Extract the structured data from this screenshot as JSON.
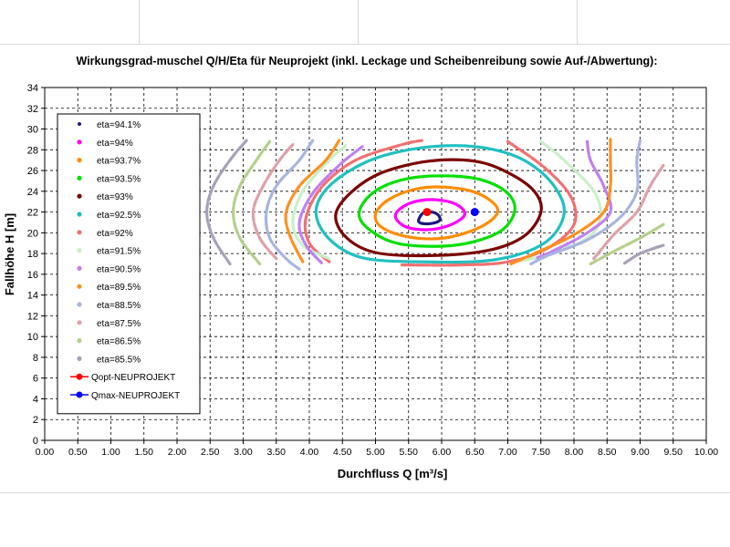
{
  "chart_data": {
    "type": "line",
    "title": "Wirkungsgrad-muschel Q/H/Eta für Neuprojekt (inkl. Leckage und Scheibenreibung sowie Auf-/Abwertung):",
    "xlabel": "Durchfluss Q [m³/s]",
    "ylabel": "Fallhöhe H [m]",
    "xlim": [
      0,
      10
    ],
    "ylim": [
      0,
      34
    ],
    "xticks": [
      "0.00",
      "0.50",
      "1.00",
      "1.50",
      "2.00",
      "2.50",
      "3.00",
      "3.50",
      "4.00",
      "4.50",
      "5.00",
      "5.50",
      "6.00",
      "6.50",
      "7.00",
      "7.50",
      "8.00",
      "8.50",
      "9.00",
      "9.50",
      "10.00"
    ],
    "yticks": [
      "0",
      "2",
      "4",
      "6",
      "8",
      "10",
      "12",
      "14",
      "16",
      "18",
      "20",
      "22",
      "24",
      "26",
      "28",
      "30",
      "32",
      "34"
    ],
    "grid": true,
    "legend_position": "left",
    "series": [
      {
        "name": "eta=94.1%",
        "color": "#1a1a80",
        "closed": true,
        "points": [
          [
            5.65,
            21.2
          ],
          [
            5.72,
            21.9
          ],
          [
            5.85,
            22.0
          ],
          [
            5.95,
            21.7
          ],
          [
            5.97,
            21.2
          ],
          [
            5.85,
            20.9
          ],
          [
            5.7,
            20.9
          ]
        ]
      },
      {
        "name": "eta=94%",
        "color": "#ff00ff",
        "closed": true,
        "points": [
          [
            5.3,
            21.7
          ],
          [
            5.5,
            22.8
          ],
          [
            5.85,
            23.2
          ],
          [
            6.2,
            22.8
          ],
          [
            6.35,
            21.8
          ],
          [
            6.15,
            20.8
          ],
          [
            5.8,
            20.3
          ],
          [
            5.45,
            20.6
          ]
        ]
      },
      {
        "name": "eta=93.7%",
        "color": "#ff8c00",
        "closed": true,
        "points": [
          [
            5.0,
            21.8
          ],
          [
            5.2,
            23.2
          ],
          [
            5.6,
            24.2
          ],
          [
            6.05,
            24.4
          ],
          [
            6.55,
            23.8
          ],
          [
            6.85,
            22.2
          ],
          [
            6.6,
            20.6
          ],
          [
            6.05,
            19.5
          ],
          [
            5.5,
            19.6
          ],
          [
            5.1,
            20.5
          ]
        ]
      },
      {
        "name": "eta=93.5%",
        "color": "#00e000",
        "closed": true,
        "points": [
          [
            4.75,
            21.8
          ],
          [
            4.95,
            23.8
          ],
          [
            5.4,
            25.1
          ],
          [
            6.0,
            25.5
          ],
          [
            6.6,
            25.1
          ],
          [
            7.0,
            23.8
          ],
          [
            7.1,
            22.0
          ],
          [
            6.85,
            20.0
          ],
          [
            6.2,
            18.8
          ],
          [
            5.4,
            18.9
          ],
          [
            4.95,
            20.1
          ]
        ]
      },
      {
        "name": "eta=93%",
        "color": "#7b0000",
        "closed": true,
        "points": [
          [
            4.4,
            21.8
          ],
          [
            4.65,
            24.0
          ],
          [
            5.1,
            25.8
          ],
          [
            5.8,
            26.9
          ],
          [
            6.5,
            26.9
          ],
          [
            7.0,
            25.8
          ],
          [
            7.4,
            24.0
          ],
          [
            7.5,
            22.0
          ],
          [
            7.25,
            19.7
          ],
          [
            6.7,
            18.3
          ],
          [
            5.8,
            17.8
          ],
          [
            5.0,
            18.1
          ],
          [
            4.55,
            19.6
          ]
        ]
      },
      {
        "name": "eta=92.5%",
        "color": "#20c0c0",
        "closed": true,
        "points": [
          [
            4.1,
            22.0
          ],
          [
            4.3,
            24.5
          ],
          [
            4.85,
            26.8
          ],
          [
            5.5,
            28.0
          ],
          [
            6.2,
            28.4
          ],
          [
            6.8,
            28.0
          ],
          [
            7.3,
            26.8
          ],
          [
            7.7,
            24.5
          ],
          [
            7.85,
            21.8
          ],
          [
            7.55,
            19.0
          ],
          [
            6.8,
            17.4
          ],
          [
            5.7,
            17.2
          ],
          [
            4.8,
            17.6
          ],
          [
            4.3,
            19.4
          ]
        ]
      },
      {
        "name": "eta=92%",
        "color": "#f07070",
        "closed": false,
        "points": [
          [
            4.3,
            17.2
          ],
          [
            4.0,
            19.0
          ],
          [
            3.95,
            21.5
          ],
          [
            4.2,
            24.5
          ],
          [
            4.7,
            27.0
          ],
          [
            5.4,
            28.5
          ],
          [
            5.7,
            28.9
          ]
        ]
      },
      {
        "name": "eta=92%",
        "color": "#f07070",
        "closed": false,
        "points": [
          [
            5.4,
            16.9
          ],
          [
            6.3,
            16.9
          ],
          [
            7.0,
            17.2
          ],
          [
            7.6,
            18.5
          ],
          [
            8.0,
            20.8
          ],
          [
            7.95,
            23.5
          ],
          [
            7.55,
            26.3
          ],
          [
            7.0,
            28.8
          ]
        ]
      },
      {
        "name": "eta=91.5%",
        "color": "#c8f0c8",
        "closed": false,
        "points": [
          [
            4.55,
            28.4
          ],
          [
            4.3,
            27.0
          ],
          [
            3.9,
            24.0
          ],
          [
            3.75,
            21.0
          ],
          [
            3.9,
            18.8
          ],
          [
            4.3,
            17.5
          ]
        ]
      },
      {
        "name": "eta=91.5%",
        "color": "#c8f0c8",
        "closed": false,
        "points": [
          [
            7.5,
            28.8
          ],
          [
            7.85,
            27.0
          ],
          [
            8.3,
            24.0
          ],
          [
            8.4,
            21.5
          ],
          [
            8.2,
            19.5
          ],
          [
            7.6,
            17.9
          ],
          [
            7.2,
            17.3
          ]
        ]
      },
      {
        "name": "eta=90.5%",
        "color": "#c080f0",
        "closed": false,
        "points": [
          [
            4.8,
            28.3
          ],
          [
            4.45,
            26.5
          ],
          [
            4.05,
            23.8
          ],
          [
            3.85,
            21.0
          ],
          [
            3.95,
            18.8
          ],
          [
            4.2,
            17.0
          ]
        ]
      },
      {
        "name": "eta=90.5%",
        "color": "#c080f0",
        "closed": false,
        "points": [
          [
            8.2,
            28.8
          ],
          [
            8.25,
            27.0
          ],
          [
            8.45,
            24.5
          ],
          [
            8.55,
            22.0
          ],
          [
            8.2,
            20.0
          ],
          [
            7.7,
            18.3
          ],
          [
            7.45,
            17.6
          ]
        ]
      },
      {
        "name": "eta=89.5%",
        "color": "#ff9020",
        "closed": false,
        "points": [
          [
            4.45,
            28.9
          ],
          [
            4.25,
            27.0
          ],
          [
            3.85,
            24.5
          ],
          [
            3.65,
            22.0
          ],
          [
            3.7,
            19.8
          ],
          [
            3.9,
            17.2
          ]
        ]
      },
      {
        "name": "eta=89.5%",
        "color": "#ff9020",
        "closed": false,
        "points": [
          [
            8.55,
            29.0
          ],
          [
            8.55,
            27.0
          ],
          [
            8.55,
            24.5
          ],
          [
            8.45,
            22.0
          ],
          [
            8.0,
            19.8
          ],
          [
            7.4,
            18.0
          ],
          [
            7.05,
            17.0
          ]
        ]
      },
      {
        "name": "eta=88.5%",
        "color": "#a8b4e0",
        "closed": false,
        "points": [
          [
            4.05,
            28.9
          ],
          [
            3.85,
            27.0
          ],
          [
            3.5,
            24.5
          ],
          [
            3.35,
            22.0
          ],
          [
            3.4,
            19.5
          ],
          [
            3.65,
            17.5
          ],
          [
            3.85,
            16.5
          ]
        ]
      },
      {
        "name": "eta=88.5%",
        "color": "#a8b4e0",
        "closed": false,
        "points": [
          [
            9.0,
            28.9
          ],
          [
            8.95,
            27.0
          ],
          [
            8.95,
            24.0
          ],
          [
            8.7,
            21.5
          ],
          [
            8.2,
            19.3
          ],
          [
            7.6,
            17.8
          ],
          [
            7.35,
            17.0
          ]
        ]
      },
      {
        "name": "eta=87.5%",
        "color": "#e0a0a8",
        "closed": false,
        "points": [
          [
            3.75,
            28.5
          ],
          [
            3.55,
            27.0
          ],
          [
            3.3,
            24.5
          ],
          [
            3.15,
            22.0
          ],
          [
            3.25,
            19.5
          ],
          [
            3.5,
            17.5
          ]
        ]
      },
      {
        "name": "eta=87.5%",
        "color": "#e0a0a8",
        "closed": false,
        "points": [
          [
            9.35,
            26.5
          ],
          [
            9.15,
            24.5
          ],
          [
            8.95,
            22.0
          ],
          [
            8.6,
            19.8
          ],
          [
            8.3,
            17.5
          ]
        ]
      },
      {
        "name": "eta=86.5%",
        "color": "#b4d08c",
        "closed": false,
        "points": [
          [
            3.4,
            28.8
          ],
          [
            3.2,
            27.0
          ],
          [
            2.95,
            24.5
          ],
          [
            2.85,
            22.0
          ],
          [
            2.95,
            19.5
          ],
          [
            3.25,
            17.0
          ]
        ]
      },
      {
        "name": "eta=86.5%",
        "color": "#b4d08c",
        "closed": false,
        "points": [
          [
            9.35,
            20.8
          ],
          [
            9.0,
            19.5
          ],
          [
            8.6,
            18.2
          ],
          [
            8.25,
            17.0
          ]
        ]
      },
      {
        "name": "eta=85.5%",
        "color": "#a8a0b8",
        "closed": false,
        "points": [
          [
            3.05,
            28.9
          ],
          [
            2.8,
            27.0
          ],
          [
            2.55,
            24.5
          ],
          [
            2.45,
            22.0
          ],
          [
            2.55,
            19.5
          ],
          [
            2.8,
            17.0
          ]
        ]
      },
      {
        "name": "eta=85.5%",
        "color": "#a8a0b8",
        "closed": false,
        "points": [
          [
            9.35,
            18.8
          ],
          [
            9.0,
            18.0
          ],
          [
            8.75,
            17.0
          ]
        ]
      }
    ],
    "points": [
      {
        "name": "Qopt-NEUPROJEKT",
        "color": "#ff0000",
        "x": 5.78,
        "y": 22.0
      },
      {
        "name": "Qmax-NEUPROJEKT",
        "color": "#0000ff",
        "x": 6.5,
        "y": 22.0
      }
    ],
    "legend": [
      {
        "label": "eta=94.1%",
        "color": "#1a1a80",
        "kind": "dot"
      },
      {
        "label": "eta=94%",
        "color": "#ff00ff",
        "kind": "line"
      },
      {
        "label": "eta=93.7%",
        "color": "#ff8c00",
        "kind": "line"
      },
      {
        "label": "eta=93.5%",
        "color": "#00e000",
        "kind": "line"
      },
      {
        "label": "eta=93%",
        "color": "#7b0000",
        "kind": "line"
      },
      {
        "label": "eta=92.5%",
        "color": "#20c0c0",
        "kind": "line"
      },
      {
        "label": "eta=92%",
        "color": "#f07070",
        "kind": "line"
      },
      {
        "label": "eta=91.5%",
        "color": "#c8f0c8",
        "kind": "line"
      },
      {
        "label": "eta=90.5%",
        "color": "#c080f0",
        "kind": "line"
      },
      {
        "label": "eta=89.5%",
        "color": "#ff9020",
        "kind": "line"
      },
      {
        "label": "eta=88.5%",
        "color": "#a8b4e0",
        "kind": "line"
      },
      {
        "label": "eta=87.5%",
        "color": "#e0a0a8",
        "kind": "line"
      },
      {
        "label": "eta=86.5%",
        "color": "#b4d08c",
        "kind": "line"
      },
      {
        "label": "eta=85.5%",
        "color": "#a8a0b8",
        "kind": "line"
      },
      {
        "label": "Qopt-NEUPROJEKT",
        "color": "#ff0000",
        "kind": "marker"
      },
      {
        "label": "Qmax-NEUPROJEKT",
        "color": "#0000ff",
        "kind": "marker"
      }
    ]
  }
}
